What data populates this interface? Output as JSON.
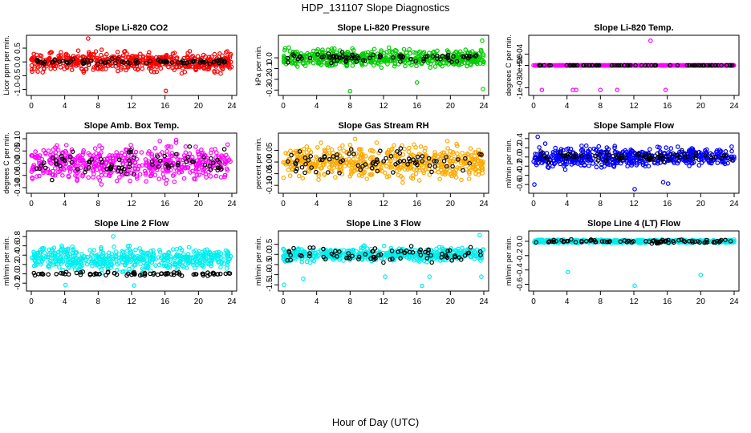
{
  "figure_title": "HDP_131107  Slope Diagnostics",
  "xlabel": "Hour of Day (UTC)",
  "x_ticks": [
    "0",
    "4",
    "8",
    "12",
    "16",
    "20",
    "24"
  ],
  "chart_data": [
    {
      "type": "scatter",
      "title": "Slope Li-820 CO2",
      "ylabel": "Licor ppm per min.",
      "color": "#ff0000",
      "xlim": [
        0,
        24
      ],
      "ylim": [
        -1.1,
        0.85
      ],
      "yticks": [
        -1.0,
        -0.5,
        0.0,
        0.5
      ],
      "ytick_labels": [
        "-1.0",
        "-0.5",
        "0.0",
        "0.5"
      ],
      "bulk_center": 0.0,
      "bulk_spread": 0.3,
      "black_center": 0.0,
      "black_spread": 0.08,
      "outliers": [
        {
          "x": 6.8,
          "y": 0.85
        },
        {
          "x": 16.1,
          "y": -1.05
        }
      ]
    },
    {
      "type": "scatter",
      "title": "Slope Li-820 Pressure",
      "ylabel": "kPa per min.",
      "color": "#00cc00",
      "xlim": [
        0,
        24
      ],
      "ylim": [
        -0.32,
        0.18
      ],
      "yticks": [
        -0.3,
        -0.2,
        -0.1,
        0.0
      ],
      "ytick_labels": [
        "-0.3",
        "-0.2",
        "-0.1",
        "0.0"
      ],
      "bulk_center": 0.0,
      "bulk_spread": 0.07,
      "black_center": 0.0,
      "black_spread": 0.03,
      "outliers": [
        {
          "x": 8.0,
          "y": -0.31
        },
        {
          "x": 16.0,
          "y": -0.23
        },
        {
          "x": 23.8,
          "y": 0.16
        },
        {
          "x": 23.9,
          "y": -0.29
        }
      ]
    },
    {
      "type": "scatter",
      "title": "Slope Li-820 Temp.",
      "ylabel": "degrees C per min.",
      "color": "#ff00ff",
      "xlim": [
        0,
        24
      ],
      "ylim": [
        -0.0012,
        0.0012
      ],
      "yticks": [
        -0.001,
        0.0,
        0.0005
      ],
      "ytick_labels": [
        "-1e-03",
        "0e+00",
        "5e-04"
      ],
      "bulk_center": 0.0,
      "bulk_spread": 0.0,
      "black_center": 0.0,
      "black_spread": 0.0,
      "outliers": [
        {
          "x": 1.0,
          "y": -0.0011
        },
        {
          "x": 4.7,
          "y": -0.0011
        },
        {
          "x": 5.1,
          "y": -0.0011
        },
        {
          "x": 8.0,
          "y": -0.0011
        },
        {
          "x": 10.0,
          "y": -0.0011
        },
        {
          "x": 14.0,
          "y": 0.0011
        },
        {
          "x": 15.8,
          "y": -0.0011
        }
      ]
    },
    {
      "type": "scatter",
      "title": "Slope Amb. Box Temp.",
      "ylabel": "degrees C per min.",
      "color": "#ff00ff",
      "xlim": [
        0,
        24
      ],
      "ylim": [
        -0.11,
        0.11
      ],
      "yticks": [
        -0.1,
        -0.05,
        0.0,
        0.05,
        0.1
      ],
      "ytick_labels": [
        "-0.10",
        "-0.05",
        "0.00",
        "0.05",
        "0.10"
      ],
      "bulk_center": 0.0,
      "bulk_spread": 0.06,
      "black_center": 0.0,
      "black_spread": 0.05,
      "outliers": []
    },
    {
      "type": "scatter",
      "title": "Slope Gas Stream RH",
      "ylabel": "percent per min.",
      "color": "#ffaa00",
      "xlim": [
        0,
        24
      ],
      "ylim": [
        -0.12,
        0.11
      ],
      "yticks": [
        -0.1,
        -0.05,
        0.0,
        0.05
      ],
      "ytick_labels": [
        "-0.10",
        "-0.05",
        "0.00",
        "0.05"
      ],
      "bulk_center": 0.0,
      "bulk_spread": 0.06,
      "black_center": 0.0,
      "black_spread": 0.045,
      "outliers": []
    },
    {
      "type": "scatter",
      "title": "Slope Sample Flow",
      "ylabel": "ml/min per min.",
      "color": "#0000ff",
      "xlim": [
        0,
        24
      ],
      "ylim": [
        -0.72,
        0.45
      ],
      "yticks": [
        -0.6,
        -0.4,
        -0.2,
        0.0,
        0.2,
        0.4
      ],
      "ytick_labels": [
        "-0.6",
        "-0.4",
        "-0.2",
        "0.0",
        "0.2",
        "0.4"
      ],
      "bulk_center": 0.0,
      "bulk_spread": 0.18,
      "black_center": 0.0,
      "black_spread": 0.08,
      "outliers": [
        {
          "x": 0.5,
          "y": 0.44
        },
        {
          "x": 0.1,
          "y": -0.6
        },
        {
          "x": 12.1,
          "y": -0.7
        },
        {
          "x": 15.5,
          "y": -0.55
        },
        {
          "x": 16.1,
          "y": -0.58
        }
      ]
    },
    {
      "type": "scatter",
      "title": "Slope Line 2 Flow",
      "ylabel": "ml/min per min.",
      "color": "#00eeee",
      "xlim": [
        0,
        24
      ],
      "ylim": [
        -0.3,
        0.85
      ],
      "yticks": [
        -0.2,
        0.0,
        0.2,
        0.4,
        0.6,
        0.8
      ],
      "ytick_labels": [
        "-0.2",
        "0.0",
        "0.2",
        "0.4",
        "0.6",
        "0.8"
      ],
      "bulk_center": 0.32,
      "bulk_spread": 0.22,
      "black_center": 0.0,
      "black_spread": 0.03,
      "outliers": [
        {
          "x": 4.1,
          "y": -0.24
        },
        {
          "x": 12.3,
          "y": -0.25
        },
        {
          "x": 9.8,
          "y": 0.8
        }
      ]
    },
    {
      "type": "scatter",
      "title": "Slope Line 3 Flow",
      "ylabel": "ml/min per min.",
      "color": "#00eeee",
      "xlim": [
        0,
        24
      ],
      "ylim": [
        -1.65,
        1.0
      ],
      "yticks": [
        -1.5,
        -1.0,
        -0.5,
        0.0,
        0.5
      ],
      "ytick_labels": [
        "-1.5",
        "-1.0",
        "-0.5",
        "0.0",
        "0.5"
      ],
      "bulk_center": 0.0,
      "bulk_spread": 0.28,
      "black_center": 0.0,
      "black_spread": 0.3,
      "outliers": [
        {
          "x": 0.1,
          "y": -1.5
        },
        {
          "x": 2.4,
          "y": -1.2
        },
        {
          "x": 12.2,
          "y": -1.1
        },
        {
          "x": 16.6,
          "y": -1.55
        },
        {
          "x": 17.5,
          "y": -1.1
        },
        {
          "x": 23.7,
          "y": -1.1
        },
        {
          "x": 23.5,
          "y": 0.95
        }
      ]
    },
    {
      "type": "scatter",
      "title": "Slope Line 4 (LT) Flow",
      "ylabel": "ml/min per min.",
      "color": "#00eeee",
      "xlim": [
        0,
        24
      ],
      "ylim": [
        -0.65,
        0.1
      ],
      "yticks": [
        -0.6,
        -0.4,
        -0.2,
        0.0
      ],
      "ytick_labels": [
        "-0.6",
        "-0.4",
        "-0.2",
        "0.0"
      ],
      "bulk_center": 0.0,
      "bulk_spread": 0.02,
      "black_center": 0.0,
      "black_spread": 0.02,
      "outliers": [
        {
          "x": 4.1,
          "y": -0.43
        },
        {
          "x": 12.1,
          "y": -0.62
        },
        {
          "x": 20.0,
          "y": -0.47
        }
      ]
    }
  ]
}
